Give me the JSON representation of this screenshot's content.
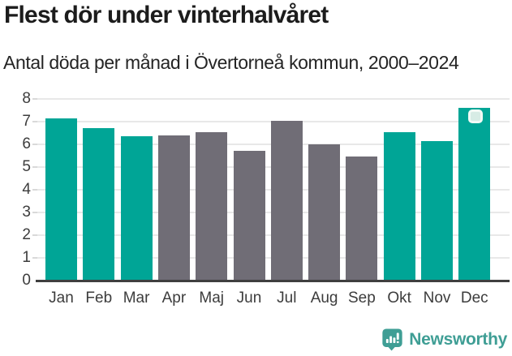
{
  "header": {
    "title": "Flest dör under vinterhalvåret",
    "subtitle": "Antal döda per månad i Övertorneå kommun, 2000–2024"
  },
  "chart_data": {
    "type": "bar",
    "title": "Flest dör under vinterhalvåret",
    "subtitle": "Antal döda per månad i Övertorneå kommun, 2000–2024",
    "categories": [
      "Jan",
      "Feb",
      "Mar",
      "Apr",
      "Maj",
      "Jun",
      "Jul",
      "Aug",
      "Sep",
      "Okt",
      "Nov",
      "Dec"
    ],
    "values": [
      7.15,
      6.7,
      6.35,
      6.4,
      6.55,
      5.7,
      7.05,
      6.0,
      5.45,
      6.55,
      6.15,
      7.6
    ],
    "bar_color_keys": [
      "teal",
      "teal",
      "teal",
      "gray",
      "gray",
      "gray",
      "gray",
      "gray",
      "gray",
      "teal",
      "teal",
      "teal"
    ],
    "xlabel": "",
    "ylabel": "",
    "ylim": [
      0,
      8
    ],
    "yticks": [
      0,
      1,
      2,
      3,
      4,
      5,
      6,
      7,
      8
    ],
    "grid": true,
    "legend_position": "none",
    "highlight": {
      "category": "Dec",
      "marker": "rounded-square"
    }
  },
  "colors": {
    "teal_bar": "#00a596",
    "gray_bar": "#706d76",
    "grid_line": "#e8e8e8",
    "axis_line": "#3f3f3f",
    "tick_label": "#3c3c3c",
    "title_text": "#1c1c1c",
    "marker_fill": "#d7ece5",
    "marker_border": "#f2faf6",
    "brand_teal": "#3f9e95"
  },
  "footer": {
    "brand": "Newsworthy",
    "logo_icon": "newsworthy-badge-bar-chart-icon"
  }
}
